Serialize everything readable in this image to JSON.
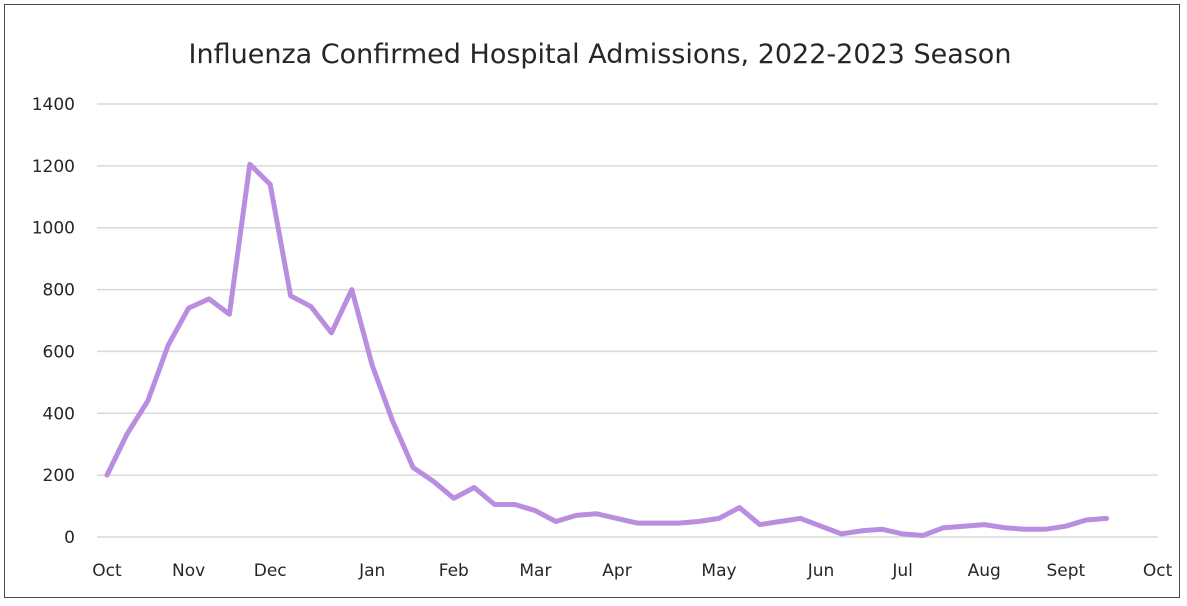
{
  "chart_data": {
    "type": "line",
    "title": "Influenza Confirmed Hospital Admissions, 2022-2023 Season",
    "xlabel": "",
    "ylabel": "",
    "ylim": [
      0,
      1400
    ],
    "yticks": [
      0,
      200,
      400,
      600,
      800,
      1000,
      1200,
      1400
    ],
    "grid": true,
    "legend": "none",
    "x_tick_labels": [
      "Oct",
      "Nov",
      "Dec",
      "Jan",
      "Feb",
      "Mar",
      "Apr",
      "May",
      "Jun",
      "Jul",
      "Aug",
      "Sept",
      "Oct"
    ],
    "x_tick_weeks": [
      0,
      4,
      8,
      13,
      17,
      21,
      25,
      30,
      35,
      39,
      43,
      47,
      51.5
    ],
    "series": [
      {
        "color": "#b98ddf",
        "values": [
          200,
          335,
          440,
          620,
          740,
          770,
          720,
          1205,
          1140,
          780,
          745,
          660,
          800,
          555,
          375,
          225,
          180,
          125,
          160,
          105,
          105,
          85,
          50,
          70,
          75,
          60,
          45,
          45,
          45,
          50,
          60,
          95,
          40,
          50,
          60,
          35,
          10,
          20,
          25,
          10,
          5,
          30,
          35,
          40,
          30,
          25,
          25,
          35,
          55,
          60
        ]
      }
    ]
  }
}
